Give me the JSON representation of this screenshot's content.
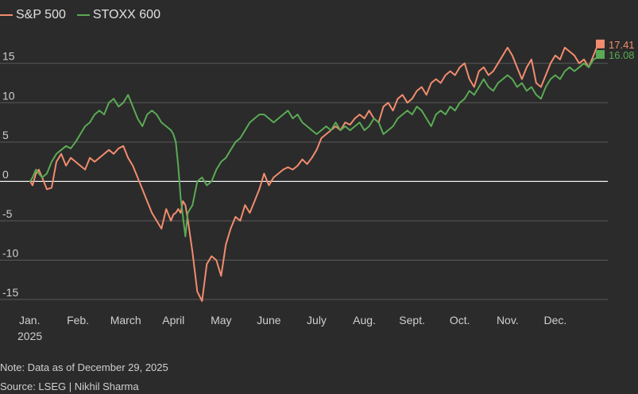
{
  "legend": [
    {
      "name": "S&P 500",
      "color": "#f28c6e"
    },
    {
      "name": "STOXX 600",
      "color": "#5aaa55"
    }
  ],
  "note": "Note: Data as of December 29, 2025",
  "source": "Source: LSEG | Nikhil Sharma",
  "chart_data": {
    "type": "line",
    "x_ticks": [
      "Jan.",
      "Feb.",
      "March",
      "April",
      "May",
      "June",
      "July",
      "Aug.",
      "Sept.",
      "Oct.",
      "Nov.",
      "Dec."
    ],
    "x_tick_sub": "2025",
    "y_ticks": [
      15,
      10,
      5,
      0,
      -5,
      -10,
      -15
    ],
    "ylim": [
      -15.5,
      18
    ],
    "grid": true,
    "end_labels": [
      "17.41",
      "16.08"
    ],
    "series": [
      {
        "name": "S&P 500",
        "color": "#f28c6e",
        "x": [
          0,
          0.05,
          0.12,
          0.18,
          0.25,
          0.35,
          0.45,
          0.55,
          0.65,
          0.75,
          0.85,
          0.95,
          1.05,
          1.15,
          1.25,
          1.35,
          1.45,
          1.55,
          1.65,
          1.75,
          1.85,
          1.95,
          2.05,
          2.15,
          2.25,
          2.35,
          2.45,
          2.55,
          2.65,
          2.75,
          2.85,
          2.95,
          3.0,
          3.05,
          3.1,
          3.15,
          3.2,
          3.25,
          3.3,
          3.4,
          3.5,
          3.6,
          3.7,
          3.8,
          3.9,
          4.0,
          4.1,
          4.2,
          4.3,
          4.4,
          4.5,
          4.6,
          4.7,
          4.8,
          4.9,
          5.0,
          5.1,
          5.2,
          5.3,
          5.4,
          5.5,
          5.6,
          5.7,
          5.8,
          5.9,
          6.0,
          6.1,
          6.2,
          6.3,
          6.4,
          6.5,
          6.6,
          6.7,
          6.8,
          6.9,
          7.0,
          7.1,
          7.2,
          7.3,
          7.4,
          7.5,
          7.6,
          7.7,
          7.8,
          7.9,
          8.0,
          8.1,
          8.2,
          8.3,
          8.4,
          8.5,
          8.6,
          8.7,
          8.8,
          8.9,
          9.0,
          9.1,
          9.2,
          9.3,
          9.4,
          9.5,
          9.6,
          9.7,
          9.8,
          9.9,
          10.0,
          10.1,
          10.2,
          10.3,
          10.4,
          10.5,
          10.6,
          10.7,
          10.8,
          10.9,
          11.0,
          11.1,
          11.2,
          11.3,
          11.4,
          11.5,
          11.6,
          11.7,
          11.8,
          11.9,
          12.0
        ],
        "values": [
          0,
          -0.5,
          1.0,
          1.5,
          0.5,
          -1.0,
          -0.8,
          2.5,
          3.5,
          2.0,
          3.0,
          2.5,
          2.0,
          1.5,
          3.0,
          2.5,
          3.0,
          3.5,
          4.0,
          3.5,
          4.2,
          4.5,
          3.0,
          2.0,
          0.5,
          -1.0,
          -2.5,
          -4.0,
          -5.0,
          -6.0,
          -3.5,
          -5.0,
          -4.2,
          -4.0,
          -3.5,
          -4.0,
          -2.5,
          -3.0,
          -4.8,
          -9.0,
          -14.0,
          -15.2,
          -10.5,
          -9.5,
          -10.0,
          -12.0,
          -8.0,
          -6.0,
          -4.5,
          -5.0,
          -3.0,
          -4.0,
          -2.5,
          -1.0,
          1.0,
          -0.5,
          0.5,
          1.0,
          1.5,
          1.8,
          1.5,
          2.0,
          2.8,
          2.2,
          3.0,
          4.0,
          5.5,
          6.0,
          6.5,
          7.0,
          6.5,
          7.5,
          7.2,
          8.0,
          8.5,
          8.0,
          9.0,
          8.0,
          7.5,
          9.5,
          10.0,
          9.0,
          10.5,
          11.0,
          10.0,
          10.5,
          11.5,
          12.0,
          11.0,
          12.5,
          13.0,
          12.5,
          13.5,
          14.0,
          13.5,
          14.5,
          15.0,
          13.0,
          12.0,
          14.0,
          14.5,
          13.5,
          14.0,
          15.0,
          16.0,
          17.0,
          16.0,
          14.5,
          13.0,
          14.5,
          15.5,
          12.5,
          12.0,
          13.5,
          15.0,
          16.0,
          15.5,
          17.0,
          16.5,
          16.0,
          15.0,
          15.5,
          14.5,
          16.0,
          17.5,
          17.41
        ],
        "end_label_index": 0
      },
      {
        "name": "STOXX 600",
        "color": "#5aaa55",
        "x": [
          0,
          0.05,
          0.12,
          0.18,
          0.25,
          0.35,
          0.45,
          0.55,
          0.65,
          0.75,
          0.85,
          0.95,
          1.05,
          1.15,
          1.25,
          1.35,
          1.45,
          1.55,
          1.65,
          1.75,
          1.85,
          1.95,
          2.05,
          2.15,
          2.25,
          2.35,
          2.45,
          2.55,
          2.65,
          2.75,
          2.85,
          2.95,
          3.0,
          3.05,
          3.1,
          3.15,
          3.2,
          3.25,
          3.3,
          3.4,
          3.5,
          3.6,
          3.7,
          3.8,
          3.9,
          4.0,
          4.1,
          4.2,
          4.3,
          4.4,
          4.5,
          4.6,
          4.7,
          4.8,
          4.9,
          5.0,
          5.1,
          5.2,
          5.3,
          5.4,
          5.5,
          5.6,
          5.7,
          5.8,
          5.9,
          6.0,
          6.1,
          6.2,
          6.3,
          6.4,
          6.5,
          6.6,
          6.7,
          6.8,
          6.9,
          7.0,
          7.1,
          7.2,
          7.3,
          7.4,
          7.5,
          7.6,
          7.7,
          7.8,
          7.9,
          8.0,
          8.1,
          8.2,
          8.3,
          8.4,
          8.5,
          8.6,
          8.7,
          8.8,
          8.9,
          9.0,
          9.1,
          9.2,
          9.3,
          9.4,
          9.5,
          9.6,
          9.7,
          9.8,
          9.9,
          10.0,
          10.1,
          10.2,
          10.3,
          10.4,
          10.5,
          10.6,
          10.7,
          10.8,
          10.9,
          11.0,
          11.1,
          11.2,
          11.3,
          11.4,
          11.5,
          11.6,
          11.7,
          11.8,
          11.9,
          12.0
        ],
        "values": [
          0,
          0.5,
          1.5,
          1.0,
          0.5,
          1.0,
          2.5,
          3.5,
          4.0,
          4.5,
          4.2,
          5.0,
          6.0,
          7.0,
          7.5,
          8.5,
          9.0,
          8.5,
          10.0,
          10.5,
          9.5,
          10.0,
          11.0,
          9.5,
          8.0,
          7.0,
          8.5,
          9.0,
          8.5,
          7.5,
          7.0,
          6.5,
          6.0,
          5.0,
          2.0,
          -2.0,
          -4.5,
          -7.0,
          -4.0,
          -3.0,
          0,
          0.5,
          -0.5,
          0,
          1.5,
          2.5,
          3.0,
          4.0,
          5.0,
          5.5,
          6.5,
          7.5,
          8.0,
          8.5,
          8.5,
          8.0,
          7.5,
          8.0,
          8.5,
          9.0,
          8.0,
          8.5,
          7.5,
          7.0,
          6.5,
          6.0,
          6.5,
          7.0,
          6.5,
          7.5,
          6.5,
          7.0,
          6.5,
          7.0,
          7.5,
          6.5,
          7.0,
          8.0,
          7.5,
          6.0,
          6.5,
          7.0,
          8.0,
          8.5,
          9.0,
          8.5,
          9.5,
          9.0,
          8.0,
          7.0,
          8.5,
          9.0,
          8.5,
          9.5,
          9.0,
          10.0,
          10.5,
          11.5,
          11.0,
          12.0,
          13.0,
          12.0,
          11.5,
          12.5,
          13.0,
          13.5,
          13.0,
          12.0,
          12.5,
          11.5,
          12.0,
          11.0,
          10.5,
          12.0,
          13.0,
          13.5,
          13.0,
          14.0,
          14.5,
          14.0,
          14.5,
          15.0,
          14.5,
          15.5,
          15.8,
          16.08
        ],
        "end_label_index": 1
      }
    ]
  }
}
